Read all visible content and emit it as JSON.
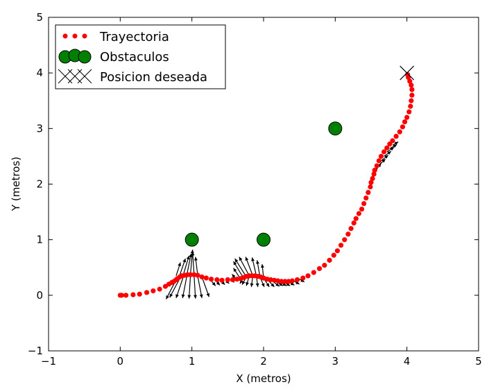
{
  "chart_data": {
    "type": "scatter",
    "xlabel": "X (metros)",
    "ylabel": "Y (metros)",
    "xlim": [
      -1,
      5
    ],
    "ylim": [
      -1,
      5
    ],
    "xticks": [
      -1,
      0,
      1,
      2,
      3,
      4,
      5
    ],
    "yticks": [
      -1,
      0,
      1,
      2,
      3,
      4,
      5
    ],
    "legend_position": "top-left",
    "legend": [
      {
        "label": "Trayectoria",
        "marker": "red-dot"
      },
      {
        "label": "Obstaculos",
        "marker": "green-circle"
      },
      {
        "label": "Posicion deseada",
        "marker": "black-x"
      }
    ],
    "colors": {
      "trajectory": "#ff0000",
      "obstacle": "#008000",
      "target": "#000000",
      "force": "#000000"
    },
    "trajectory": [
      [
        0.0,
        0.0
      ],
      [
        0.02,
        0.0
      ],
      [
        0.08,
        0.0
      ],
      [
        0.18,
        0.01
      ],
      [
        0.27,
        0.02
      ],
      [
        0.37,
        0.05
      ],
      [
        0.46,
        0.08
      ],
      [
        0.55,
        0.11
      ],
      [
        0.63,
        0.16
      ],
      [
        0.68,
        0.2
      ],
      [
        0.72,
        0.23
      ],
      [
        0.75,
        0.25
      ],
      [
        0.78,
        0.28
      ],
      [
        0.8,
        0.3
      ],
      [
        0.83,
        0.33
      ],
      [
        0.86,
        0.35
      ],
      [
        0.9,
        0.36
      ],
      [
        0.94,
        0.37
      ],
      [
        0.98,
        0.37
      ],
      [
        1.03,
        0.37
      ],
      [
        1.08,
        0.36
      ],
      [
        1.14,
        0.33
      ],
      [
        1.2,
        0.31
      ],
      [
        1.27,
        0.29
      ],
      [
        1.35,
        0.28
      ],
      [
        1.42,
        0.27
      ],
      [
        1.5,
        0.28
      ],
      [
        1.57,
        0.28
      ],
      [
        1.63,
        0.29
      ],
      [
        1.68,
        0.3
      ],
      [
        1.72,
        0.32
      ],
      [
        1.76,
        0.34
      ],
      [
        1.8,
        0.35
      ],
      [
        1.84,
        0.35
      ],
      [
        1.88,
        0.35
      ],
      [
        1.92,
        0.34
      ],
      [
        1.96,
        0.33
      ],
      [
        2.0,
        0.31
      ],
      [
        2.05,
        0.29
      ],
      [
        2.1,
        0.28
      ],
      [
        2.15,
        0.27
      ],
      [
        2.2,
        0.26
      ],
      [
        2.25,
        0.25
      ],
      [
        2.3,
        0.25
      ],
      [
        2.35,
        0.25
      ],
      [
        2.4,
        0.26
      ],
      [
        2.47,
        0.28
      ],
      [
        2.55,
        0.31
      ],
      [
        2.62,
        0.35
      ],
      [
        2.7,
        0.41
      ],
      [
        2.78,
        0.48
      ],
      [
        2.85,
        0.54
      ],
      [
        2.92,
        0.63
      ],
      [
        2.98,
        0.72
      ],
      [
        3.03,
        0.8
      ],
      [
        3.08,
        0.9
      ],
      [
        3.13,
        1.0
      ],
      [
        3.18,
        1.1
      ],
      [
        3.22,
        1.2
      ],
      [
        3.26,
        1.3
      ],
      [
        3.29,
        1.38
      ],
      [
        3.33,
        1.47
      ],
      [
        3.37,
        1.55
      ],
      [
        3.4,
        1.65
      ],
      [
        3.43,
        1.75
      ],
      [
        3.46,
        1.85
      ],
      [
        3.49,
        1.95
      ],
      [
        3.5,
        2.03
      ],
      [
        3.52,
        2.1
      ],
      [
        3.54,
        2.18
      ],
      [
        3.55,
        2.25
      ],
      [
        3.58,
        2.33
      ],
      [
        3.61,
        2.42
      ],
      [
        3.64,
        2.5
      ],
      [
        3.68,
        2.58
      ],
      [
        3.72,
        2.65
      ],
      [
        3.76,
        2.72
      ],
      [
        3.8,
        2.78
      ],
      [
        3.85,
        2.86
      ],
      [
        3.9,
        2.94
      ],
      [
        3.94,
        3.03
      ],
      [
        3.97,
        3.12
      ],
      [
        4.0,
        3.2
      ],
      [
        4.03,
        3.3
      ],
      [
        4.05,
        3.4
      ],
      [
        4.06,
        3.5
      ],
      [
        4.07,
        3.6
      ],
      [
        4.07,
        3.7
      ],
      [
        4.06,
        3.78
      ],
      [
        4.04,
        3.85
      ],
      [
        4.02,
        3.92
      ],
      [
        4.01,
        3.97
      ]
    ],
    "obstacles": [
      [
        1,
        1
      ],
      [
        2,
        1
      ],
      [
        3,
        3
      ]
    ],
    "target": [
      4,
      4
    ],
    "force_vectors": [
      [
        0.78,
        0.28,
        -0.14,
        -0.35
      ],
      [
        0.83,
        0.3,
        -0.14,
        -0.34
      ],
      [
        0.88,
        0.33,
        -0.1,
        -0.38
      ],
      [
        0.93,
        0.35,
        -0.06,
        -0.4
      ],
      [
        0.98,
        0.36,
        -0.02,
        -0.42
      ],
      [
        1.03,
        0.36,
        0.02,
        -0.42
      ],
      [
        1.08,
        0.35,
        0.06,
        -0.4
      ],
      [
        1.14,
        0.33,
        0.1,
        -0.36
      ],
      [
        0.78,
        0.35,
        0.06,
        0.24
      ],
      [
        0.83,
        0.36,
        0.08,
        0.3
      ],
      [
        0.88,
        0.37,
        0.08,
        0.34
      ],
      [
        0.93,
        0.37,
        0.06,
        0.38
      ],
      [
        0.98,
        0.38,
        0.03,
        0.44
      ],
      [
        1.03,
        0.38,
        -0.02,
        0.4
      ],
      [
        1.08,
        0.37,
        -0.03,
        0.32
      ],
      [
        1.25,
        0.29,
        0.08,
        -0.12
      ],
      [
        1.32,
        0.28,
        0.07,
        -0.1
      ],
      [
        1.4,
        0.27,
        0.06,
        -0.08
      ],
      [
        1.47,
        0.27,
        0.05,
        -0.06
      ],
      [
        1.55,
        0.28,
        0.04,
        -0.05
      ],
      [
        1.62,
        0.28,
        -0.06,
        0.1
      ],
      [
        1.68,
        0.29,
        -0.1,
        0.2
      ],
      [
        1.72,
        0.31,
        -0.14,
        0.3
      ],
      [
        1.76,
        0.33,
        -0.16,
        0.33
      ],
      [
        1.8,
        0.35,
        -0.14,
        0.34
      ],
      [
        1.85,
        0.35,
        -0.1,
        0.34
      ],
      [
        1.9,
        0.35,
        -0.06,
        0.33
      ],
      [
        1.95,
        0.33,
        -0.04,
        0.3
      ],
      [
        2.0,
        0.31,
        -0.02,
        0.25
      ],
      [
        1.72,
        0.31,
        -0.05,
        -0.1
      ],
      [
        1.76,
        0.33,
        -0.06,
        -0.14
      ],
      [
        1.8,
        0.35,
        -0.04,
        -0.18
      ],
      [
        1.85,
        0.35,
        -0.02,
        -0.2
      ],
      [
        1.9,
        0.35,
        0.02,
        -0.2
      ],
      [
        1.95,
        0.33,
        0.06,
        -0.18
      ],
      [
        2.0,
        0.31,
        0.08,
        -0.16
      ],
      [
        2.05,
        0.29,
        0.1,
        -0.14
      ],
      [
        2.1,
        0.28,
        0.12,
        -0.12
      ],
      [
        2.15,
        0.27,
        0.12,
        -0.1
      ],
      [
        2.2,
        0.26,
        0.12,
        -0.09
      ],
      [
        2.27,
        0.25,
        0.1,
        -0.08
      ],
      [
        2.34,
        0.25,
        0.09,
        -0.07
      ],
      [
        2.42,
        0.26,
        0.08,
        -0.06
      ],
      [
        2.5,
        0.29,
        0.07,
        -0.05
      ],
      [
        3.52,
        2.17,
        0.07,
        0.12
      ],
      [
        3.56,
        2.25,
        0.08,
        0.12
      ],
      [
        3.6,
        2.33,
        0.1,
        0.12
      ],
      [
        3.64,
        2.42,
        0.1,
        0.1
      ],
      [
        3.68,
        2.5,
        0.1,
        0.09
      ],
      [
        3.72,
        2.58,
        0.1,
        0.08
      ],
      [
        3.76,
        2.64,
        0.1,
        0.07
      ],
      [
        3.8,
        2.7,
        0.08,
        0.06
      ]
    ]
  }
}
